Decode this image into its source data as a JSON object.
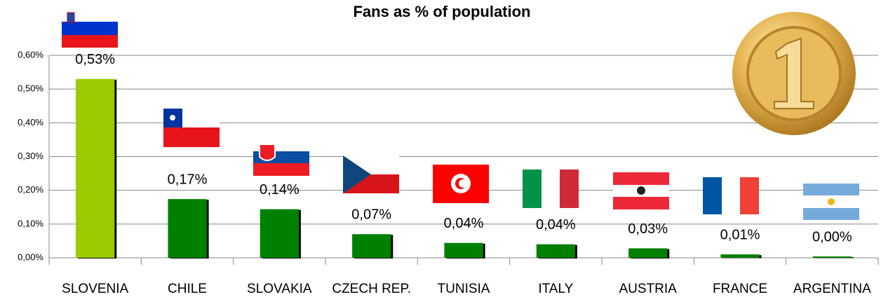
{
  "chart_data": {
    "type": "bar",
    "title": "Fans as % of population",
    "categories": [
      "SLOVENIA",
      "CHILE",
      "SLOVAKIA",
      "CZECH REP.",
      "TUNISIA",
      "ITALY",
      "AUSTRIA",
      "FRANCE",
      "ARGENTINA"
    ],
    "values": [
      0.53,
      0.174,
      0.144,
      0.07,
      0.044,
      0.04,
      0.028,
      0.01,
      0.004
    ],
    "value_labels": [
      "0,53%",
      "0,17%",
      "0,14%",
      "0,07%",
      "0,04%",
      "0,04%",
      "0,03%",
      "0,01%",
      "0,00%"
    ],
    "colors": [
      "#99cc00",
      "#008000",
      "#008000",
      "#008000",
      "#008000",
      "#008000",
      "#008000",
      "#008000",
      "#008000"
    ],
    "ylim": [
      0,
      0.6
    ],
    "yticks": [
      {
        "value": 0,
        "label": "0,00%"
      },
      {
        "value": 0.1,
        "label": "0,10%"
      },
      {
        "value": 0.2,
        "label": "0,20%"
      },
      {
        "value": 0.3,
        "label": "0,30%"
      },
      {
        "value": 0.4,
        "label": "0,40%"
      },
      {
        "value": 0.5,
        "label": "0,50%"
      },
      {
        "value": 0.6,
        "label": "0,60%"
      }
    ],
    "grid": true
  }
}
